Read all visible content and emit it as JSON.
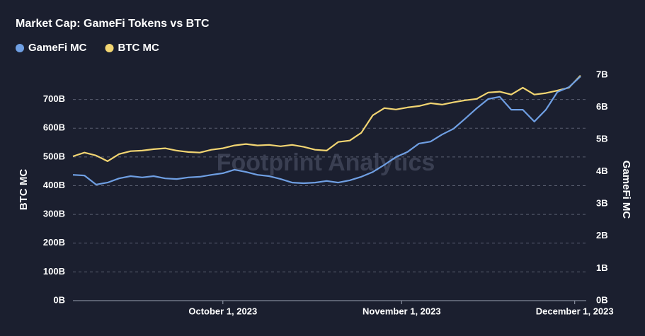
{
  "chart_data": {
    "type": "line",
    "title": "Market Cap: GameFi Tokens vs BTC",
    "watermark": "Footprint Analytics",
    "y_label": "BTC MC",
    "y2_label": "GameFi MC",
    "x": [
      "2023-09-05",
      "2023-09-07",
      "2023-09-09",
      "2023-09-11",
      "2023-09-13",
      "2023-09-15",
      "2023-09-17",
      "2023-09-19",
      "2023-09-21",
      "2023-09-23",
      "2023-09-25",
      "2023-09-27",
      "2023-09-29",
      "2023-10-01",
      "2023-10-03",
      "2023-10-05",
      "2023-10-07",
      "2023-10-09",
      "2023-10-11",
      "2023-10-13",
      "2023-10-15",
      "2023-10-17",
      "2023-10-19",
      "2023-10-21",
      "2023-10-23",
      "2023-10-25",
      "2023-10-27",
      "2023-10-29",
      "2023-10-31",
      "2023-11-02",
      "2023-11-04",
      "2023-11-06",
      "2023-11-08",
      "2023-11-10",
      "2023-11-12",
      "2023-11-14",
      "2023-11-16",
      "2023-11-18",
      "2023-11-20",
      "2023-11-22",
      "2023-11-24",
      "2023-11-26",
      "2023-11-28",
      "2023-11-30",
      "2023-12-02"
    ],
    "series": [
      {
        "name": "GameFi MC",
        "color": "#6f9fe3",
        "axis": "y2",
        "values": [
          3.9,
          3.88,
          3.6,
          3.66,
          3.79,
          3.86,
          3.82,
          3.86,
          3.79,
          3.77,
          3.82,
          3.84,
          3.9,
          3.95,
          4.06,
          3.99,
          3.9,
          3.86,
          3.77,
          3.66,
          3.64,
          3.66,
          3.71,
          3.66,
          3.73,
          3.84,
          3.99,
          4.21,
          4.45,
          4.61,
          4.87,
          4.93,
          5.15,
          5.33,
          5.64,
          5.96,
          6.25,
          6.32,
          5.92,
          5.92,
          5.55,
          5.92,
          6.47,
          6.62,
          6.95
        ]
      },
      {
        "name": "BTC MC",
        "color": "#f2d572",
        "values": [
          502,
          515,
          505,
          485,
          510,
          520,
          522,
          527,
          530,
          522,
          517,
          515,
          525,
          530,
          540,
          545,
          540,
          542,
          537,
          542,
          535,
          525,
          522,
          552,
          557,
          584,
          645,
          670,
          665,
          672,
          677,
          687,
          682,
          690,
          697,
          702,
          724,
          727,
          717,
          741,
          717,
          722,
          731,
          741,
          783
        ]
      }
    ],
    "xlim": [
      "2023-09-05",
      "2023-12-03"
    ],
    "xticks": [
      {
        "value": "2023-10-01",
        "label": "October 1, 2023"
      },
      {
        "value": "2023-11-01",
        "label": "November 1, 2023"
      },
      {
        "value": "2023-12-01",
        "label": "December 1, 2023"
      }
    ],
    "ylim": [
      0,
      790
    ],
    "yticks": [
      {
        "value": 0,
        "label": "0B"
      },
      {
        "value": 100,
        "label": "100B"
      },
      {
        "value": 200,
        "label": "200B"
      },
      {
        "value": 300,
        "label": "300B"
      },
      {
        "value": 400,
        "label": "400B"
      },
      {
        "value": 500,
        "label": "500B"
      },
      {
        "value": 600,
        "label": "600B"
      },
      {
        "value": 700,
        "label": "700B"
      }
    ],
    "y2lim": [
      0,
      7.04
    ],
    "y2ticks": [
      {
        "value": 0,
        "label": "0B"
      },
      {
        "value": 1,
        "label": "1B"
      },
      {
        "value": 2,
        "label": "2B"
      },
      {
        "value": 3,
        "label": "3B"
      },
      {
        "value": 4,
        "label": "4B"
      },
      {
        "value": 5,
        "label": "5B"
      },
      {
        "value": 6,
        "label": "6B"
      },
      {
        "value": 7,
        "label": "7B"
      }
    ],
    "grid": true
  }
}
